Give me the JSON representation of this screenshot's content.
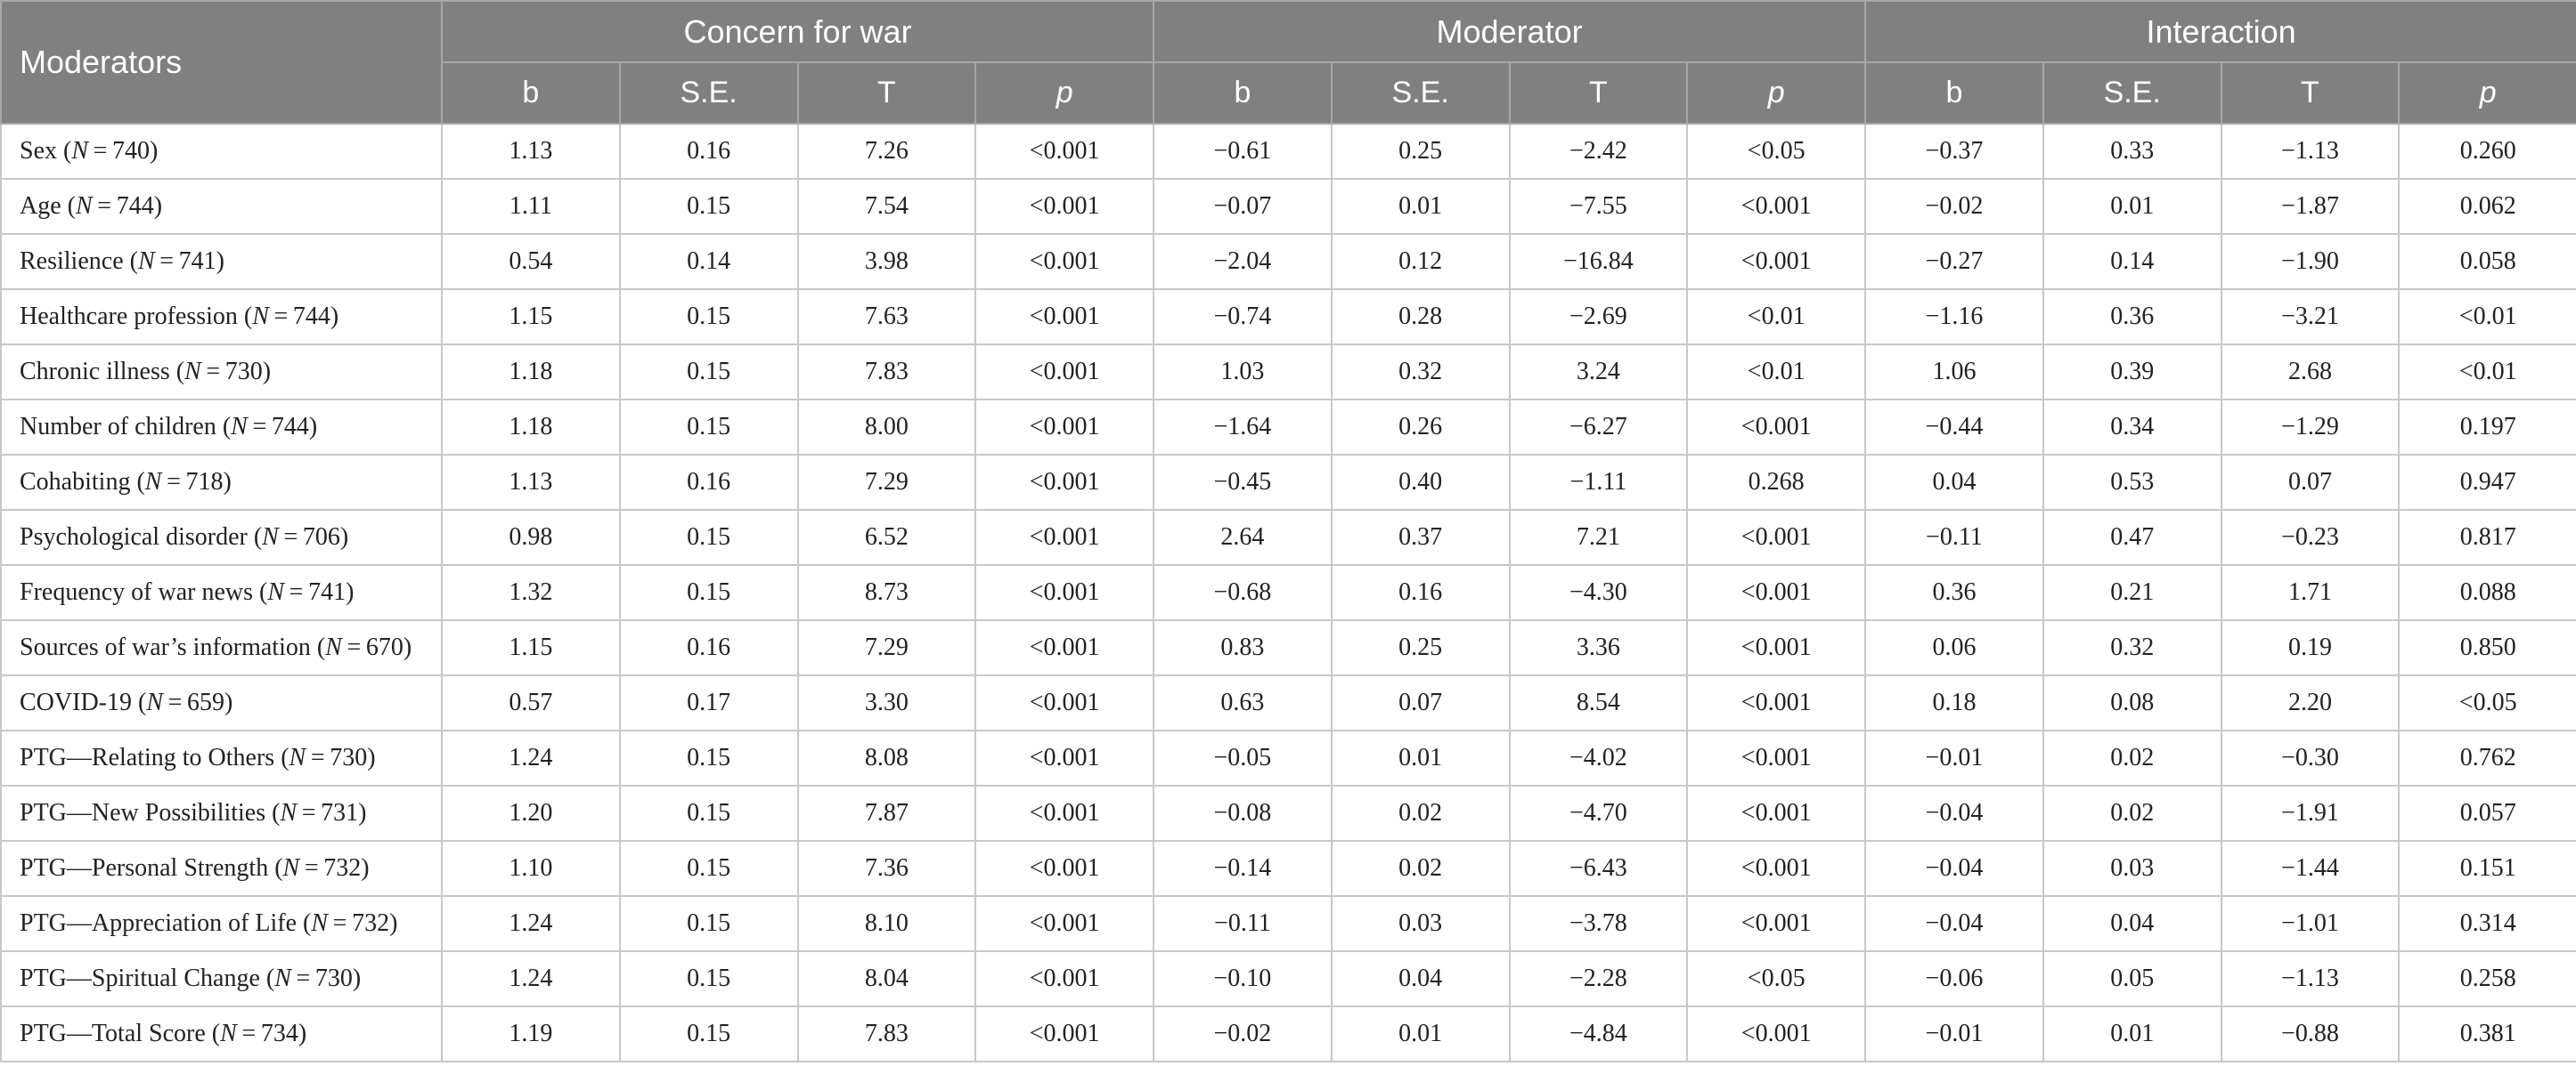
{
  "header": {
    "moderators_label": "Moderators",
    "groups": [
      "Concern for war",
      "Moderator",
      "Interaction"
    ],
    "subcolumns": [
      "b",
      "S.E.",
      "T",
      "p"
    ]
  },
  "rows": [
    {
      "label": "Sex",
      "n": "740",
      "values": [
        "1.13",
        "0.16",
        "7.26",
        "<0.001",
        "−0.61",
        "0.25",
        "−2.42",
        "<0.05",
        "−0.37",
        "0.33",
        "−1.13",
        "0.260"
      ]
    },
    {
      "label": "Age",
      "n": "744",
      "values": [
        "1.11",
        "0.15",
        "7.54",
        "<0.001",
        "−0.07",
        "0.01",
        "−7.55",
        "<0.001",
        "−0.02",
        "0.01",
        "−1.87",
        "0.062"
      ]
    },
    {
      "label": "Resilience",
      "n": "741",
      "values": [
        "0.54",
        "0.14",
        "3.98",
        "<0.001",
        "−2.04",
        "0.12",
        "−16.84",
        "<0.001",
        "−0.27",
        "0.14",
        "−1.90",
        "0.058"
      ]
    },
    {
      "label": "Healthcare profession",
      "n": "744",
      "values": [
        "1.15",
        "0.15",
        "7.63",
        "<0.001",
        "−0.74",
        "0.28",
        "−2.69",
        "<0.01",
        "−1.16",
        "0.36",
        "−3.21",
        "<0.01"
      ]
    },
    {
      "label": "Chronic illness",
      "n": "730",
      "values": [
        "1.18",
        "0.15",
        "7.83",
        "<0.001",
        "1.03",
        "0.32",
        "3.24",
        "<0.01",
        "1.06",
        "0.39",
        "2.68",
        "<0.01"
      ]
    },
    {
      "label": "Number of children",
      "n": "744",
      "values": [
        "1.18",
        "0.15",
        "8.00",
        "<0.001",
        "−1.64",
        "0.26",
        "−6.27",
        "<0.001",
        "−0.44",
        "0.34",
        "−1.29",
        "0.197"
      ]
    },
    {
      "label": "Cohabiting",
      "n": "718",
      "values": [
        "1.13",
        "0.16",
        "7.29",
        "<0.001",
        "−0.45",
        "0.40",
        "−1.11",
        "0.268",
        "0.04",
        "0.53",
        "0.07",
        "0.947"
      ]
    },
    {
      "label": "Psychological disorder",
      "n": "706",
      "values": [
        "0.98",
        "0.15",
        "6.52",
        "<0.001",
        "2.64",
        "0.37",
        "7.21",
        "<0.001",
        "−0.11",
        "0.47",
        "−0.23",
        "0.817"
      ]
    },
    {
      "label": "Frequency of war news",
      "n": "741",
      "values": [
        "1.32",
        "0.15",
        "8.73",
        "<0.001",
        "−0.68",
        "0.16",
        "−4.30",
        "<0.001",
        "0.36",
        "0.21",
        "1.71",
        "0.088"
      ]
    },
    {
      "label": "Sources of war’s information",
      "n": "670",
      "values": [
        "1.15",
        "0.16",
        "7.29",
        "<0.001",
        "0.83",
        "0.25",
        "3.36",
        "<0.001",
        "0.06",
        "0.32",
        "0.19",
        "0.850"
      ]
    },
    {
      "label": "COVID-19",
      "n": "659",
      "values": [
        "0.57",
        "0.17",
        "3.30",
        "<0.001",
        "0.63",
        "0.07",
        "8.54",
        "<0.001",
        "0.18",
        "0.08",
        "2.20",
        "<0.05"
      ]
    },
    {
      "label": "PTG—Relating to Others",
      "n": "730",
      "values": [
        "1.24",
        "0.15",
        "8.08",
        "<0.001",
        "−0.05",
        "0.01",
        "−4.02",
        "<0.001",
        "−0.01",
        "0.02",
        "−0.30",
        "0.762"
      ]
    },
    {
      "label": "PTG—New Possibilities",
      "n": "731",
      "values": [
        "1.20",
        "0.15",
        "7.87",
        "<0.001",
        "−0.08",
        "0.02",
        "−4.70",
        "<0.001",
        "−0.04",
        "0.02",
        "−1.91",
        "0.057"
      ]
    },
    {
      "label": "PTG—Personal Strength",
      "n": "732",
      "values": [
        "1.10",
        "0.15",
        "7.36",
        "<0.001",
        "−0.14",
        "0.02",
        "−6.43",
        "<0.001",
        "−0.04",
        "0.03",
        "−1.44",
        "0.151"
      ]
    },
    {
      "label": "PTG—Appreciation of Life",
      "n": "732",
      "values": [
        "1.24",
        "0.15",
        "8.10",
        "<0.001",
        "−0.11",
        "0.03",
        "−3.78",
        "<0.001",
        "−0.04",
        "0.04",
        "−1.01",
        "0.314"
      ]
    },
    {
      "label": "PTG—Spiritual Change",
      "n": "730",
      "values": [
        "1.24",
        "0.15",
        "8.04",
        "<0.001",
        "−0.10",
        "0.04",
        "−2.28",
        "<0.05",
        "−0.06",
        "0.05",
        "−1.13",
        "0.258"
      ]
    },
    {
      "label": "PTG—Total Score",
      "n": "734",
      "values": [
        "1.19",
        "0.15",
        "7.83",
        "<0.001",
        "−0.02",
        "0.01",
        "−4.84",
        "<0.001",
        "−0.01",
        "0.01",
        "−0.88",
        "0.381"
      ]
    }
  ]
}
